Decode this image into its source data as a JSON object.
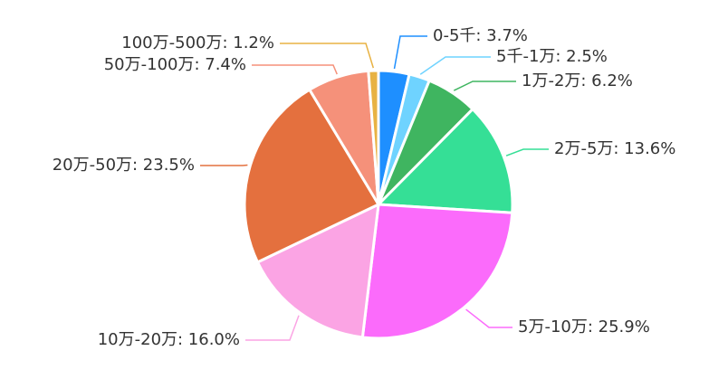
{
  "chart_data": {
    "type": "pie",
    "labels": [
      "0-5千: 3.7%",
      "5千-1万: 2.5%",
      "1万-2万: 6.2%",
      "2万-5万: 13.6%",
      "5万-10万: 25.9%",
      "10万-20万: 16.0%",
      "20万-50万: 23.5%",
      "50万-100万: 7.4%",
      "100万-500万: 1.2%"
    ],
    "values": [
      3.7,
      2.5,
      6.2,
      13.6,
      25.9,
      16.0,
      23.5,
      7.4,
      1.2
    ],
    "colors": [
      "#1e8fff",
      "#6fd3ff",
      "#3fb560",
      "#35df96",
      "#fb6bfb",
      "#fba4e4",
      "#e4703e",
      "#f5917a",
      "#e8b243"
    ]
  }
}
